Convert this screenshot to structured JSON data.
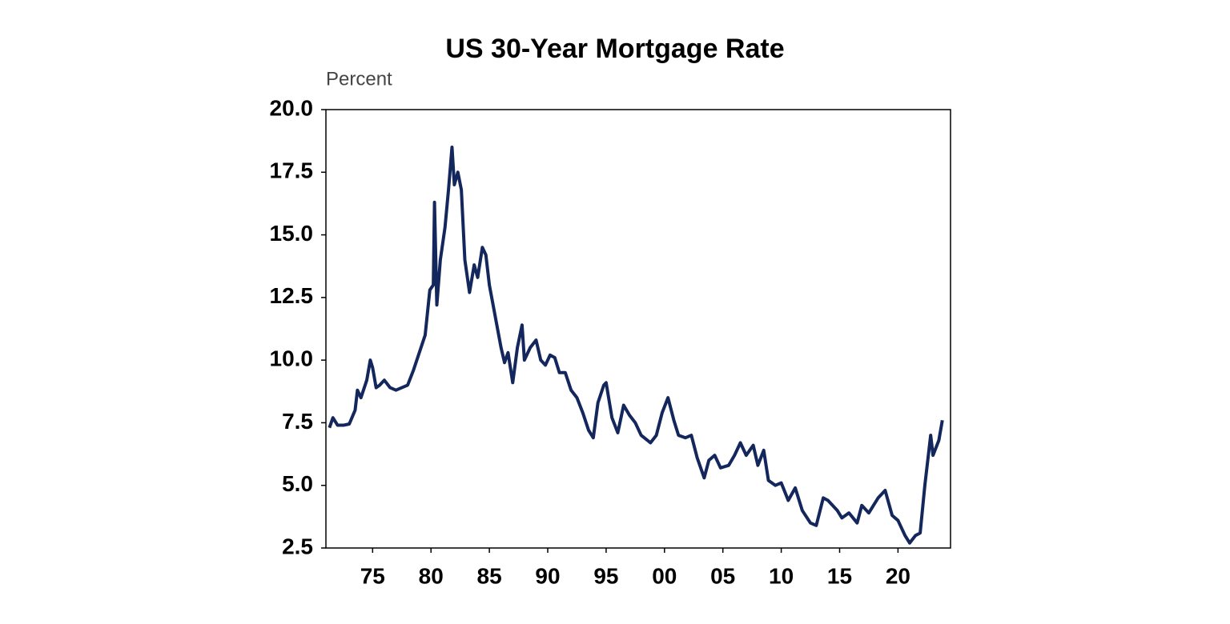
{
  "chart_data": {
    "type": "line",
    "title": "US 30-Year Mortgage Rate",
    "y_label": "Percent",
    "series": [
      {
        "name": "US 30-Year Mortgage Rate",
        "color": "#14275c",
        "x": [
          1971.3,
          1971.6,
          1972.0,
          1972.5,
          1973.0,
          1973.5,
          1973.7,
          1974.0,
          1974.5,
          1974.8,
          1975.0,
          1975.3,
          1975.6,
          1976.0,
          1976.5,
          1977.0,
          1977.5,
          1978.0,
          1978.5,
          1979.0,
          1979.5,
          1979.9,
          1980.2,
          1980.3,
          1980.5,
          1980.8,
          1981.2,
          1981.5,
          1981.8,
          1982.0,
          1982.3,
          1982.6,
          1982.9,
          1983.3,
          1983.7,
          1984.0,
          1984.4,
          1984.7,
          1985.0,
          1985.4,
          1985.8,
          1986.0,
          1986.3,
          1986.6,
          1987.0,
          1987.4,
          1987.8,
          1988.0,
          1988.5,
          1989.0,
          1989.4,
          1989.8,
          1990.2,
          1990.6,
          1991.0,
          1991.5,
          1992.0,
          1992.5,
          1993.0,
          1993.5,
          1993.9,
          1994.3,
          1994.8,
          1995.0,
          1995.5,
          1996.0,
          1996.5,
          1997.0,
          1997.5,
          1998.0,
          1998.8,
          1999.3,
          1999.8,
          2000.3,
          2000.8,
          2001.2,
          2001.8,
          2002.3,
          2002.8,
          2003.4,
          2003.8,
          2004.3,
          2004.8,
          2005.5,
          2006.0,
          2006.5,
          2007.0,
          2007.6,
          2008.0,
          2008.5,
          2008.9,
          2009.5,
          2010.0,
          2010.6,
          2011.2,
          2011.8,
          2012.5,
          2013.0,
          2013.6,
          2014.0,
          2014.8,
          2015.2,
          2015.8,
          2016.5,
          2016.9,
          2017.5,
          2018.3,
          2018.9,
          2019.5,
          2020.0,
          2020.6,
          2021.0,
          2021.5,
          2021.9,
          2022.3,
          2022.8,
          2023.0,
          2023.5,
          2023.8
        ],
        "values": [
          7.3,
          7.7,
          7.4,
          7.4,
          7.45,
          8.0,
          8.8,
          8.5,
          9.2,
          10.0,
          9.7,
          8.9,
          9.0,
          9.2,
          8.9,
          8.8,
          8.9,
          9.0,
          9.6,
          10.3,
          11.0,
          12.8,
          13.0,
          16.3,
          12.2,
          14.0,
          15.3,
          16.8,
          18.5,
          17.0,
          17.5,
          16.8,
          14.0,
          12.7,
          13.8,
          13.3,
          14.5,
          14.2,
          13.0,
          12.0,
          11.0,
          10.5,
          9.9,
          10.3,
          9.1,
          10.5,
          11.4,
          10.0,
          10.5,
          10.8,
          10.0,
          9.8,
          10.2,
          10.1,
          9.5,
          9.5,
          8.8,
          8.5,
          7.9,
          7.2,
          6.9,
          8.3,
          9.0,
          9.1,
          7.7,
          7.1,
          8.2,
          7.8,
          7.5,
          7.0,
          6.7,
          7.0,
          7.9,
          8.5,
          7.6,
          7.0,
          6.9,
          7.0,
          6.1,
          5.3,
          6.0,
          6.2,
          5.7,
          5.8,
          6.2,
          6.7,
          6.2,
          6.6,
          5.8,
          6.4,
          5.2,
          5.0,
          5.1,
          4.4,
          4.9,
          4.0,
          3.5,
          3.4,
          4.5,
          4.4,
          4.0,
          3.7,
          3.9,
          3.5,
          4.2,
          3.9,
          4.5,
          4.8,
          3.8,
          3.6,
          3.0,
          2.7,
          3.0,
          3.1,
          5.0,
          7.0,
          6.2,
          6.8,
          7.6
        ]
      }
    ],
    "xlim": [
      1971,
      2024.5
    ],
    "xticks": [
      {
        "value": 1975,
        "label": "75"
      },
      {
        "value": 1980,
        "label": "80"
      },
      {
        "value": 1985,
        "label": "85"
      },
      {
        "value": 1990,
        "label": "90"
      },
      {
        "value": 1995,
        "label": "95"
      },
      {
        "value": 2000,
        "label": "00"
      },
      {
        "value": 2005,
        "label": "05"
      },
      {
        "value": 2010,
        "label": "10"
      },
      {
        "value": 2015,
        "label": "15"
      },
      {
        "value": 2020,
        "label": "20"
      }
    ],
    "ylim": [
      2.5,
      20
    ],
    "yticks": [
      {
        "value": 2.5,
        "label": "2.5"
      },
      {
        "value": 5,
        "label": "5.0"
      },
      7.5,
      {
        "value": 10,
        "label": "10.0"
      },
      12.5,
      {
        "value": 15,
        "label": "15.0"
      },
      17.5,
      {
        "value": 20,
        "label": "20.0"
      }
    ],
    "grid": false
  }
}
